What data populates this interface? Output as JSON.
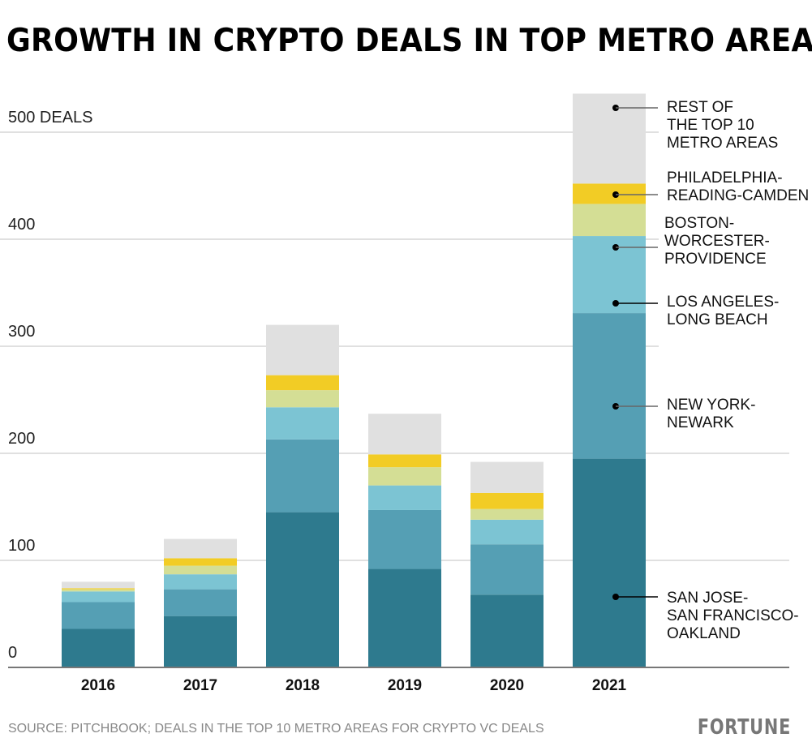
{
  "chart_data": {
    "type": "bar",
    "stacked": true,
    "title": "GROWTH IN CRYPTO DEALS IN TOP METRO AREAS",
    "categories": [
      "2016",
      "2017",
      "2018",
      "2019",
      "2020",
      "2021"
    ],
    "y_ticks": [
      {
        "value": 0,
        "label": "0"
      },
      {
        "value": 100,
        "label": "100"
      },
      {
        "value": 200,
        "label": "200"
      },
      {
        "value": 300,
        "label": "300"
      },
      {
        "value": 400,
        "label": "400"
      },
      {
        "value": 500,
        "label": "500 DEALS"
      }
    ],
    "ylim": [
      0,
      540
    ],
    "grid": true,
    "legend": "annotations on right of last bar",
    "series": [
      {
        "name": "SAN JOSE-SAN FRANCISCO-OAKLAND",
        "label_lines": [
          "SAN JOSE-",
          "SAN FRANCISCO-",
          "OAKLAND"
        ],
        "color": "#2e7a8e",
        "values": [
          36,
          48,
          145,
          92,
          68,
          195
        ]
      },
      {
        "name": "NEW YORK-NEWARK",
        "label_lines": [
          "NEW YORK-",
          "NEWARK"
        ],
        "color": "#559fb4",
        "values": [
          25,
          25,
          68,
          55,
          47,
          136
        ]
      },
      {
        "name": "LOS ANGELES-LONG BEACH",
        "label_lines": [
          "LOS ANGELES-",
          "LONG BEACH"
        ],
        "color": "#7cc4d3",
        "values": [
          10,
          14,
          30,
          23,
          23,
          72
        ]
      },
      {
        "name": "BOSTON-WORCESTER-PROVIDENCE",
        "label_lines": [
          "BOSTON-",
          "WORCESTER-",
          "PROVIDENCE"
        ],
        "color": "#d4de95",
        "values": [
          2,
          8,
          16,
          17,
          10,
          30
        ]
      },
      {
        "name": "PHILADELPHIA-READING-CAMDEN",
        "label_lines": [
          "PHILADELPHIA-",
          "READING-CAMDEN"
        ],
        "color": "#f2cc25",
        "values": [
          1,
          7,
          14,
          12,
          15,
          19
        ]
      },
      {
        "name": "REST OF THE TOP 10 METRO AREAS",
        "label_lines": [
          "REST OF",
          "THE TOP 10",
          "METRO AREAS"
        ],
        "color": "#e0e0e0",
        "values": [
          6,
          18,
          47,
          38,
          29,
          84
        ]
      }
    ]
  },
  "source": "SOURCE: PITCHBOOK; DEALS IN THE TOP 10 METRO AREAS FOR CRYPTO VC DEALS",
  "logo": "FORTUNE"
}
